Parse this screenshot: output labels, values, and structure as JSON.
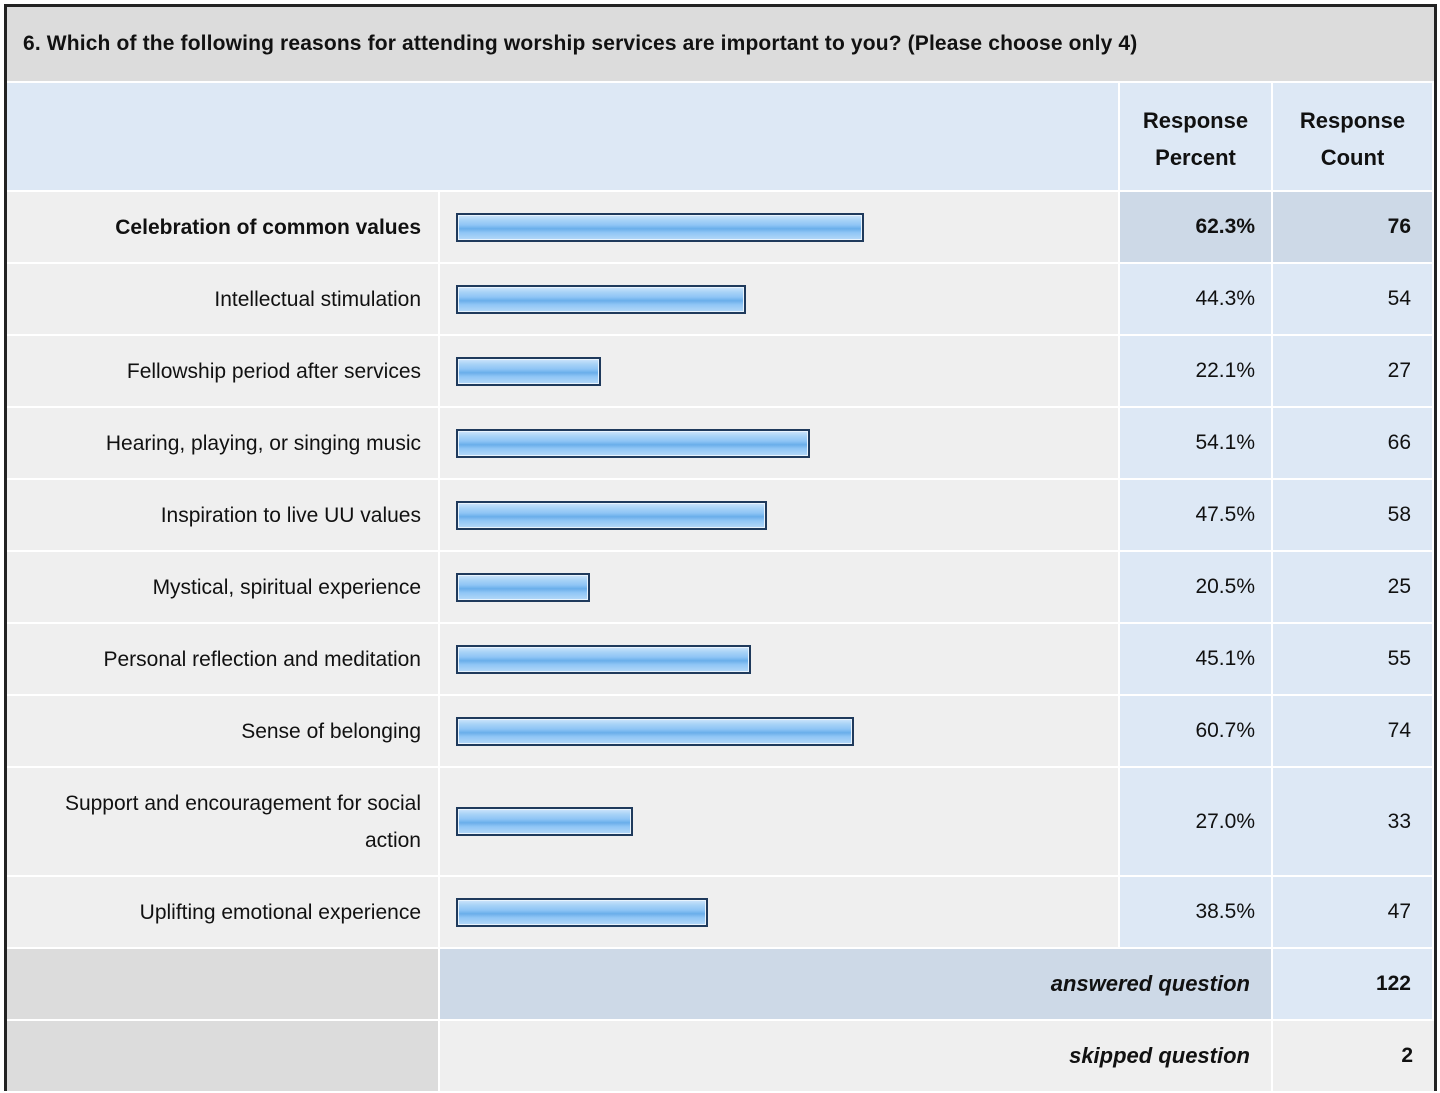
{
  "question": "6. Which of the following reasons for attending worship services are important to you? (Please choose only 4)",
  "headers": {
    "response_percent_line1": "Response",
    "response_percent_line2": "Percent",
    "response_count_line1": "Response",
    "response_count_line2": "Count"
  },
  "rows": [
    {
      "label": "Celebration of common values",
      "percent": "62.3%",
      "count": "76",
      "value": 62.3
    },
    {
      "label": "Intellectual stimulation",
      "percent": "44.3%",
      "count": "54",
      "value": 44.3
    },
    {
      "label": "Fellowship period after services",
      "percent": "22.1%",
      "count": "27",
      "value": 22.1
    },
    {
      "label": "Hearing, playing, or singing music",
      "percent": "54.1%",
      "count": "66",
      "value": 54.1
    },
    {
      "label": "Inspiration to live UU values",
      "percent": "47.5%",
      "count": "58",
      "value": 47.5
    },
    {
      "label": "Mystical, spiritual experience",
      "percent": "20.5%",
      "count": "25",
      "value": 20.5
    },
    {
      "label": "Personal reflection and meditation",
      "percent": "45.1%",
      "count": "55",
      "value": 45.1
    },
    {
      "label": "Sense of belonging",
      "percent": "60.7%",
      "count": "74",
      "value": 60.7
    },
    {
      "label": "Support and encouragement for social action",
      "percent": "27.0%",
      "count": "33",
      "value": 27.0
    },
    {
      "label": "Uplifting emotional experience",
      "percent": "38.5%",
      "count": "47",
      "value": 38.5
    }
  ],
  "footer": {
    "answered_label": "answered question",
    "answered_value": "122",
    "skipped_label": "skipped question",
    "skipped_value": "2"
  },
  "colors": {
    "header_bg": "#dde8f5",
    "label_bg": "#efefef",
    "highlight_bg": "#cdd9e7",
    "bar_border": "#1f3a5c",
    "bar_fill": "#8fc5f5"
  }
}
